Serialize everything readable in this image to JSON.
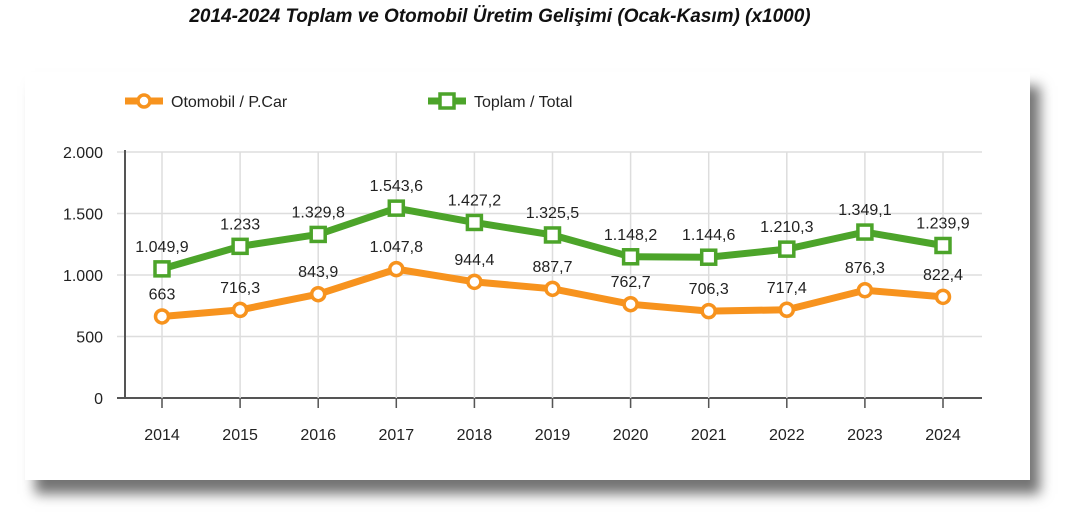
{
  "chart_data": {
    "type": "line",
    "title": "2014-2024 Toplam ve Otomobil Üretim Gelişimi (Ocak-Kasım) (x1000)",
    "xlabel": "",
    "ylabel": "",
    "categories": [
      "2014",
      "2015",
      "2016",
      "2017",
      "2018",
      "2019",
      "2020",
      "2021",
      "2022",
      "2023",
      "2024"
    ],
    "ylim": [
      0,
      2000
    ],
    "yticks": [
      0,
      500,
      1000,
      1500,
      2000
    ],
    "ytick_labels": [
      "0",
      "500",
      "1.000",
      "1.500",
      "2.000"
    ],
    "grid": true,
    "legend_position": "top-left",
    "series": [
      {
        "name": "Otomobil / P.Car",
        "color": "#f7931e",
        "marker": "circle",
        "values": [
          663,
          716.3,
          843.9,
          1047.8,
          944.4,
          887.7,
          762.7,
          706.3,
          717.4,
          876.3,
          822.4
        ],
        "labels": [
          "663",
          "716,3",
          "843,9",
          "1.047,8",
          "944,4",
          "887,7",
          "762,7",
          "706,3",
          "717,4",
          "876,3",
          "822,4"
        ]
      },
      {
        "name": "Toplam / Total",
        "color": "#4ca42a",
        "marker": "square",
        "values": [
          1049.9,
          1233,
          1329.8,
          1543.6,
          1427.2,
          1325.5,
          1148.2,
          1144.6,
          1210.3,
          1349.1,
          1239.9
        ],
        "labels": [
          "1.049,9",
          "1.233",
          "1.329,8",
          "1.543,6",
          "1.427,2",
          "1.325,5",
          "1.148,2",
          "1.144,6",
          "1.210,3",
          "1.349,1",
          "1.239,9"
        ]
      }
    ]
  }
}
